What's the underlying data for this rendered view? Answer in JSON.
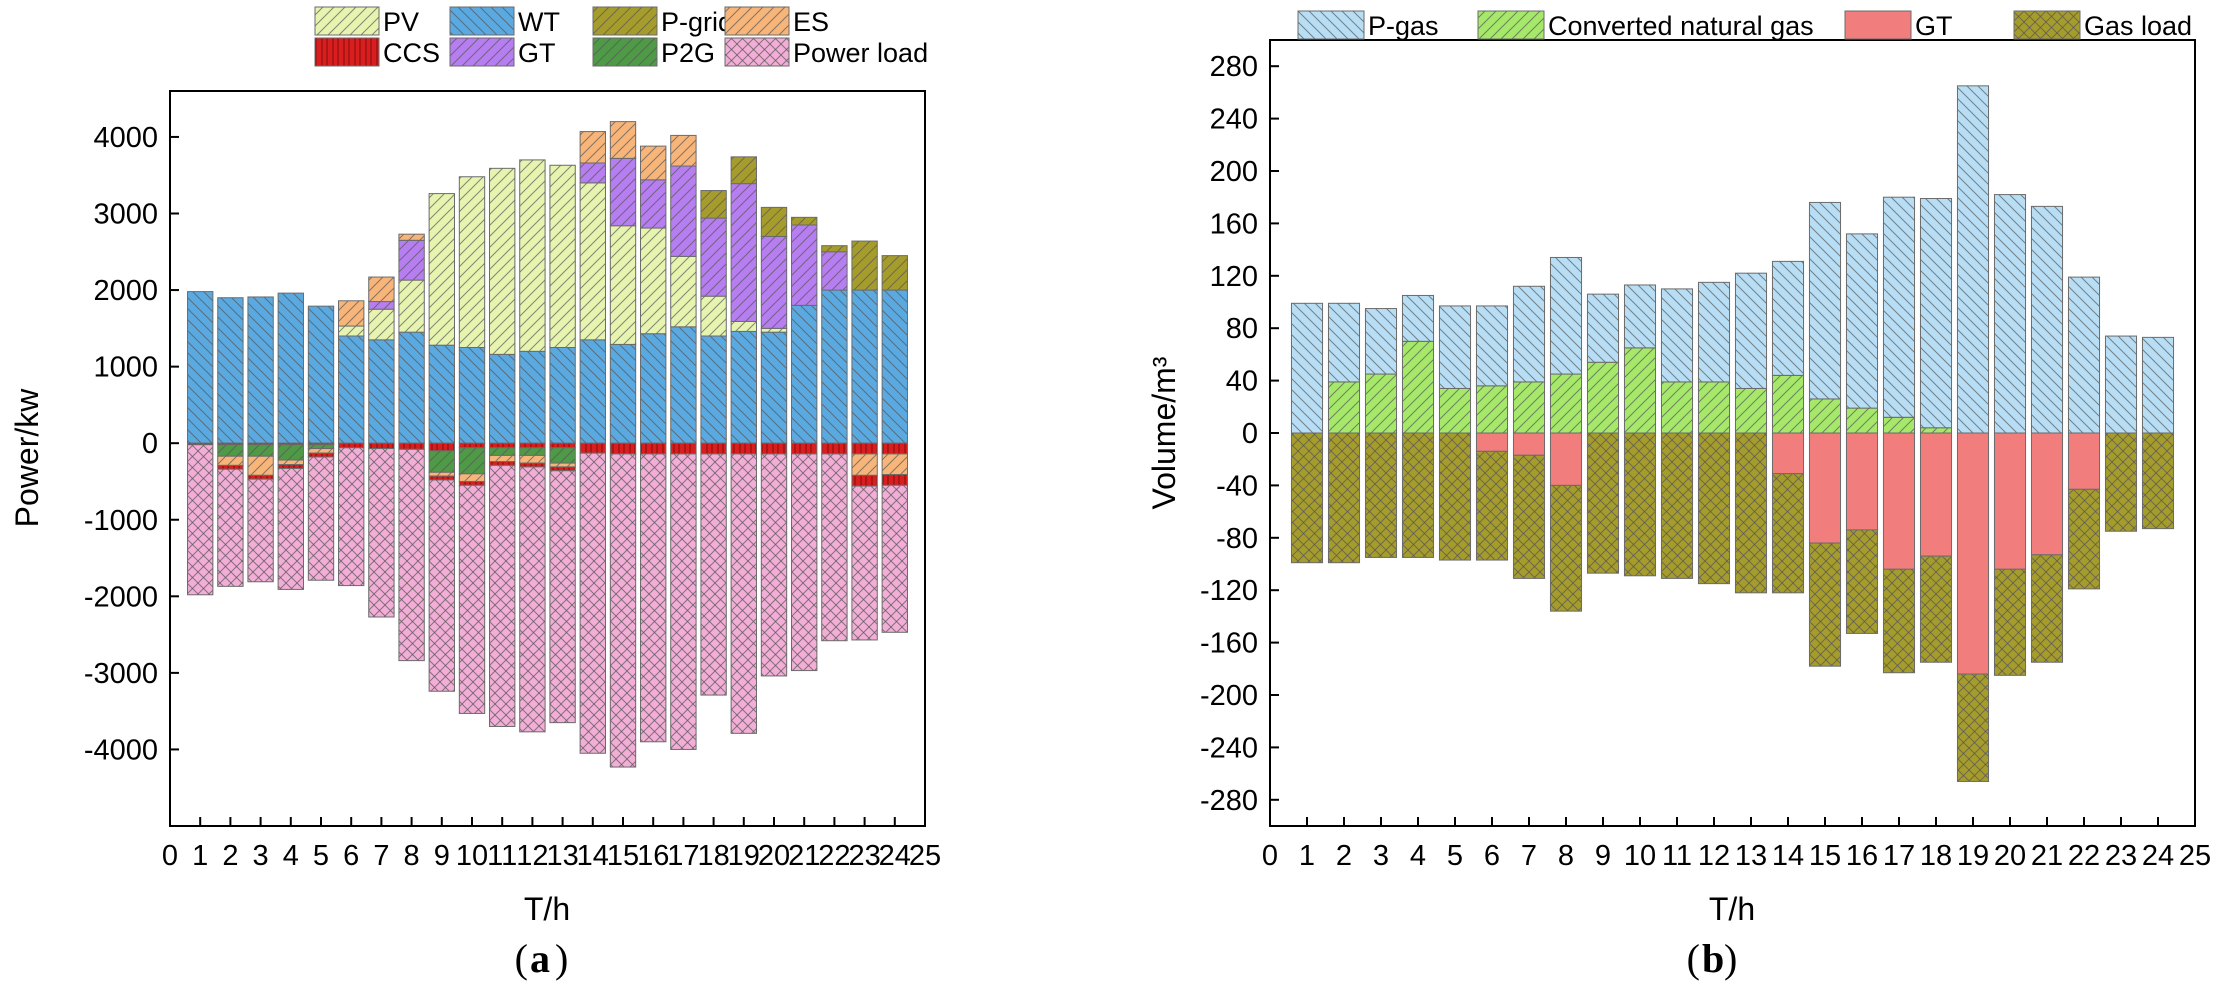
{
  "figure": {
    "label_a": "a",
    "label_b": "b"
  },
  "colors": {
    "PV": "#e6f4b0",
    "WT": "#5aa9e0",
    "P-grid": "#a59c2c",
    "ES": "#f7b57a",
    "CCS": "#d81e1e",
    "GT": "#b67ef0",
    "P2G": "#4f9a47",
    "Power load": "#f2aed6",
    "P-gas": "#b8def5",
    "Converted natural gas": "#a6e86a",
    "GT_b": "#f27d7d",
    "Gas load": "#a59c2c"
  },
  "chart_data": [
    {
      "id": "a",
      "type": "bar",
      "stacked": true,
      "title": "",
      "xlabel": "T/h",
      "ylabel": "Power/kw",
      "xlim": [
        0,
        25
      ],
      "ylim": [
        -5000,
        4600
      ],
      "xticks": [
        "0",
        "1",
        "2",
        "3",
        "4",
        "5",
        "6",
        "7",
        "8",
        "9",
        "10",
        "11",
        "12",
        "13",
        "14",
        "15",
        "16",
        "17",
        "18",
        "19",
        "20",
        "21",
        "22",
        "23",
        "24",
        "25"
      ],
      "yticks": [
        "-4000",
        "-3000",
        "-2000",
        "-1000",
        "0",
        "1000",
        "2000",
        "3000",
        "4000"
      ],
      "ytick_values": [
        -4000,
        -3000,
        -2000,
        -1000,
        0,
        1000,
        2000,
        3000,
        4000
      ],
      "x": [
        1,
        2,
        3,
        4,
        5,
        6,
        7,
        8,
        9,
        10,
        11,
        12,
        13,
        14,
        15,
        16,
        17,
        18,
        19,
        20,
        21,
        22,
        23,
        24
      ],
      "legend": [
        "PV",
        "WT",
        "P-grid",
        "ES",
        "CCS",
        "GT",
        "P2G",
        "Power load"
      ],
      "series": [
        {
          "name": "WT",
          "color_key": "WT",
          "hatch": "back",
          "values": [
            1980,
            1900,
            1910,
            1960,
            1790,
            1400,
            1350,
            1450,
            1280,
            1250,
            1160,
            1200,
            1250,
            1350,
            1290,
            1430,
            1520,
            1400,
            1460,
            1450,
            1800,
            2000,
            2000,
            2000
          ]
        },
        {
          "name": "PV",
          "color_key": "PV",
          "hatch": "fwd",
          "values": [
            0,
            0,
            0,
            0,
            0,
            130,
            400,
            680,
            1980,
            2230,
            2430,
            2500,
            2380,
            2050,
            1550,
            1380,
            920,
            520,
            130,
            50,
            0,
            0,
            0,
            0
          ]
        },
        {
          "name": "GT",
          "color_key": "GT",
          "hatch": "fwd",
          "values": [
            0,
            0,
            0,
            0,
            0,
            0,
            100,
            520,
            0,
            0,
            0,
            0,
            0,
            260,
            880,
            630,
            1180,
            1020,
            1800,
            1200,
            1050,
            500,
            0,
            0
          ]
        },
        {
          "name": "P-grid",
          "color_key": "P-grid",
          "hatch": "fwd",
          "values": [
            0,
            0,
            0,
            0,
            0,
            0,
            0,
            0,
            0,
            0,
            0,
            0,
            0,
            0,
            0,
            0,
            0,
            360,
            350,
            380,
            100,
            80,
            640,
            450
          ]
        },
        {
          "name": "ES",
          "color_key": "ES",
          "hatch": "fwd",
          "values": [
            0,
            0,
            0,
            0,
            0,
            330,
            320,
            80,
            0,
            0,
            0,
            0,
            0,
            410,
            480,
            440,
            400,
            0,
            0,
            0,
            0,
            0,
            0,
            0
          ]
        },
        {
          "name": "CCS",
          "color_key": "CCS",
          "hatch": "vert",
          "values": [
            -20,
            -20,
            -20,
            -20,
            -20,
            -60,
            -70,
            -80,
            -100,
            -60,
            -60,
            -60,
            -60,
            -130,
            -140,
            -140,
            -140,
            -140,
            -140,
            -140,
            -140,
            -140,
            -140,
            -140
          ]
        },
        {
          "name": "P2G",
          "color_key": "P2G",
          "hatch": "fwd",
          "values": [
            0,
            -150,
            -150,
            -200,
            -50,
            0,
            0,
            0,
            -280,
            -340,
            -100,
            -100,
            -200,
            0,
            0,
            0,
            0,
            0,
            0,
            0,
            0,
            0,
            0,
            0
          ]
        },
        {
          "name": "ES",
          "color_key": "ES",
          "hatch": "fwd",
          "values": [
            0,
            -120,
            -250,
            -60,
            -60,
            0,
            0,
            0,
            -50,
            -100,
            -80,
            -100,
            -50,
            0,
            0,
            0,
            0,
            0,
            0,
            0,
            0,
            0,
            -280,
            -270
          ]
        },
        {
          "name": "CCS",
          "color_key": "CCS",
          "hatch": "vert",
          "values": [
            0,
            -50,
            -50,
            -50,
            -50,
            0,
            0,
            0,
            -50,
            -50,
            -50,
            -50,
            -50,
            0,
            0,
            0,
            0,
            0,
            0,
            0,
            0,
            0,
            -140,
            -140
          ]
        },
        {
          "name": "Power load",
          "color_key": "Power load",
          "hatch": "cross",
          "values": [
            -1960,
            -1530,
            -1340,
            -1580,
            -1610,
            -1800,
            -2200,
            -2760,
            -2760,
            -2980,
            -3410,
            -3460,
            -3290,
            -3920,
            -4090,
            -3760,
            -3860,
            -3150,
            -3650,
            -2900,
            -2830,
            -2440,
            -2010,
            -1920
          ]
        }
      ]
    },
    {
      "id": "b",
      "type": "bar",
      "stacked": true,
      "title": "",
      "xlabel": "T/h",
      "ylabel": "Volume/m³",
      "xlim": [
        0,
        25
      ],
      "ylim": [
        -300,
        300
      ],
      "xticks": [
        "0",
        "1",
        "2",
        "3",
        "4",
        "5",
        "6",
        "7",
        "8",
        "9",
        "10",
        "11",
        "12",
        "13",
        "14",
        "15",
        "16",
        "17",
        "18",
        "19",
        "20",
        "21",
        "22",
        "23",
        "24",
        "25"
      ],
      "yticks": [
        "-280",
        "-240",
        "-200",
        "-160",
        "-120",
        "-80",
        "-40",
        "0",
        "40",
        "80",
        "120",
        "160",
        "200",
        "240",
        "280"
      ],
      "ytick_values": [
        -280,
        -240,
        -200,
        -160,
        -120,
        -80,
        -40,
        0,
        40,
        80,
        120,
        160,
        200,
        240,
        280
      ],
      "x": [
        1,
        2,
        3,
        4,
        5,
        6,
        7,
        8,
        9,
        10,
        11,
        12,
        13,
        14,
        15,
        16,
        17,
        18,
        19,
        20,
        21,
        22,
        23,
        24
      ],
      "legend": [
        "P-gas",
        "Converted natural gas",
        "GT",
        "Gas load"
      ],
      "series": [
        {
          "name": "Converted natural gas",
          "color_key": "Converted natural gas",
          "hatch": "fwd",
          "values": [
            0,
            39,
            45,
            70,
            34,
            36,
            39,
            45,
            54,
            65,
            39,
            39,
            34,
            44,
            26,
            19,
            12,
            4,
            0,
            0,
            0,
            0,
            0,
            0
          ]
        },
        {
          "name": "P-gas",
          "color_key": "P-gas",
          "hatch": "back",
          "values": [
            99,
            60,
            50,
            35,
            63,
            61,
            73,
            89,
            52,
            48,
            71,
            76,
            88,
            87,
            150,
            133,
            168,
            175,
            265,
            182,
            173,
            119,
            74,
            73
          ]
        },
        {
          "name": "GT",
          "color_key": "GT_b",
          "hatch": "none",
          "values": [
            0,
            0,
            0,
            0,
            0,
            -14,
            -17,
            -40,
            0,
            0,
            0,
            0,
            0,
            -31,
            -84,
            -74,
            -104,
            -94,
            -184,
            -104,
            -93,
            -43,
            0,
            0
          ]
        },
        {
          "name": "Gas load",
          "color_key": "Gas load",
          "hatch": "cross",
          "values": [
            -99,
            -99,
            -95,
            -95,
            -97,
            -83,
            -94,
            -96,
            -107,
            -109,
            -111,
            -115,
            -122,
            -91,
            -94,
            -79,
            -79,
            -81,
            -82,
            -81,
            -82,
            -76,
            -75,
            -73
          ]
        }
      ]
    }
  ]
}
